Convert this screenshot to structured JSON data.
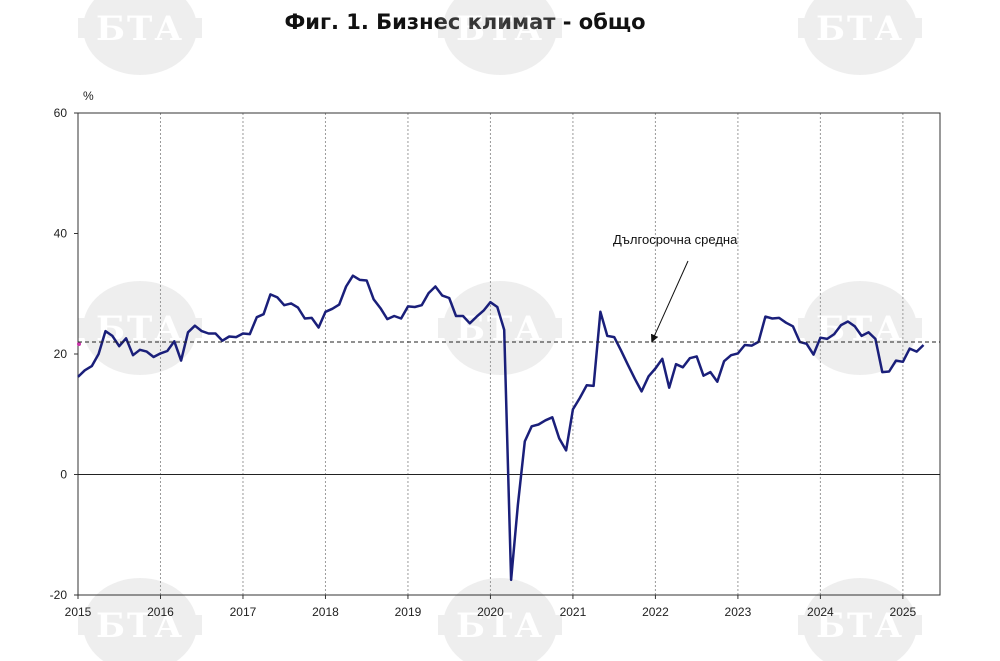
{
  "title": "Фиг. 1. Бизнес климат - общо",
  "watermark_text": "БТА",
  "chart_data": {
    "type": "line",
    "title": "Фиг. 1. Бизнес климат - общо",
    "ylabel": "%",
    "ylim": [
      -20,
      60
    ],
    "yticks": [
      "60",
      "40",
      "20",
      "0",
      "-20"
    ],
    "xlim": [
      2015,
      2025.45
    ],
    "x_tick_labels": [
      "2015",
      "2016",
      "2017",
      "2018",
      "2019",
      "2020",
      "2021",
      "2022",
      "2023",
      "2024",
      "2025"
    ],
    "grid": "vertical dotted lines at years",
    "line_color": "#1a1f7a",
    "reference_line": {
      "name": "Дългосрочна средна",
      "value": 22,
      "style": "dashed"
    },
    "annotation": "Дългосрочна средна",
    "series": [
      {
        "values": [
          [
            2015.0,
            16.2
          ],
          [
            2015.083,
            17.3
          ],
          [
            2015.167,
            18.0
          ],
          [
            2015.25,
            20.0
          ],
          [
            2015.333,
            23.8
          ],
          [
            2015.417,
            23.0
          ],
          [
            2015.5,
            21.3
          ],
          [
            2015.583,
            22.6
          ],
          [
            2015.667,
            19.8
          ],
          [
            2015.75,
            20.7
          ],
          [
            2015.833,
            20.4
          ],
          [
            2015.917,
            19.5
          ],
          [
            2016.0,
            20.1
          ],
          [
            2016.083,
            20.5
          ],
          [
            2016.167,
            22.1
          ],
          [
            2016.25,
            18.9
          ],
          [
            2016.333,
            23.6
          ],
          [
            2016.417,
            24.7
          ],
          [
            2016.5,
            23.8
          ],
          [
            2016.583,
            23.4
          ],
          [
            2016.667,
            23.4
          ],
          [
            2016.75,
            22.2
          ],
          [
            2016.833,
            22.9
          ],
          [
            2016.917,
            22.8
          ],
          [
            2017.0,
            23.4
          ],
          [
            2017.083,
            23.3
          ],
          [
            2017.167,
            26.1
          ],
          [
            2017.25,
            26.6
          ],
          [
            2017.333,
            29.9
          ],
          [
            2017.417,
            29.4
          ],
          [
            2017.5,
            28.1
          ],
          [
            2017.583,
            28.4
          ],
          [
            2017.667,
            27.7
          ],
          [
            2017.75,
            25.9
          ],
          [
            2017.833,
            26.0
          ],
          [
            2017.917,
            24.4
          ],
          [
            2018.0,
            27.0
          ],
          [
            2018.083,
            27.5
          ],
          [
            2018.167,
            28.2
          ],
          [
            2018.25,
            31.2
          ],
          [
            2018.333,
            33.0
          ],
          [
            2018.417,
            32.3
          ],
          [
            2018.5,
            32.2
          ],
          [
            2018.583,
            29.1
          ],
          [
            2018.667,
            27.6
          ],
          [
            2018.75,
            25.8
          ],
          [
            2018.833,
            26.3
          ],
          [
            2018.917,
            25.9
          ],
          [
            2019.0,
            27.9
          ],
          [
            2019.083,
            27.8
          ],
          [
            2019.167,
            28.1
          ],
          [
            2019.25,
            30.1
          ],
          [
            2019.333,
            31.2
          ],
          [
            2019.417,
            29.7
          ],
          [
            2019.5,
            29.3
          ],
          [
            2019.583,
            26.3
          ],
          [
            2019.667,
            26.3
          ],
          [
            2019.75,
            25.1
          ],
          [
            2019.833,
            26.2
          ],
          [
            2019.917,
            27.2
          ],
          [
            2020.0,
            28.6
          ],
          [
            2020.083,
            27.8
          ],
          [
            2020.167,
            24.0
          ],
          [
            2020.25,
            -17.5
          ],
          [
            2020.333,
            -5.0
          ],
          [
            2020.417,
            5.5
          ],
          [
            2020.5,
            8.0
          ],
          [
            2020.583,
            8.3
          ],
          [
            2020.667,
            9.0
          ],
          [
            2020.75,
            9.5
          ],
          [
            2020.833,
            6.0
          ],
          [
            2020.917,
            4.0
          ],
          [
            2021.0,
            10.8
          ],
          [
            2021.083,
            12.7
          ],
          [
            2021.167,
            14.8
          ],
          [
            2021.25,
            14.7
          ],
          [
            2021.333,
            27.0
          ],
          [
            2021.417,
            23.0
          ],
          [
            2021.5,
            22.8
          ],
          [
            2021.583,
            20.6
          ],
          [
            2021.667,
            18.2
          ],
          [
            2021.75,
            15.9
          ],
          [
            2021.833,
            13.8
          ],
          [
            2021.917,
            16.3
          ],
          [
            2022.0,
            17.6
          ],
          [
            2022.083,
            19.2
          ],
          [
            2022.167,
            14.4
          ],
          [
            2022.25,
            18.3
          ],
          [
            2022.333,
            17.8
          ],
          [
            2022.417,
            19.3
          ],
          [
            2022.5,
            19.6
          ],
          [
            2022.583,
            16.4
          ],
          [
            2022.667,
            17.0
          ],
          [
            2022.75,
            15.4
          ],
          [
            2022.833,
            18.8
          ],
          [
            2022.917,
            19.8
          ],
          [
            2023.0,
            20.1
          ],
          [
            2023.083,
            21.5
          ],
          [
            2023.167,
            21.4
          ],
          [
            2023.25,
            22.0
          ],
          [
            2023.333,
            26.2
          ],
          [
            2023.417,
            25.9
          ],
          [
            2023.5,
            26.0
          ],
          [
            2023.583,
            25.2
          ],
          [
            2023.667,
            24.6
          ],
          [
            2023.75,
            22.0
          ],
          [
            2023.833,
            21.7
          ],
          [
            2023.917,
            19.9
          ],
          [
            2024.0,
            22.7
          ],
          [
            2024.083,
            22.5
          ],
          [
            2024.167,
            23.3
          ],
          [
            2024.25,
            24.8
          ],
          [
            2024.333,
            25.4
          ],
          [
            2024.417,
            24.6
          ],
          [
            2024.5,
            23.0
          ],
          [
            2024.583,
            23.6
          ],
          [
            2024.667,
            22.5
          ],
          [
            2024.75,
            17.0
          ],
          [
            2024.833,
            17.1
          ],
          [
            2024.917,
            18.9
          ],
          [
            2025.0,
            18.7
          ],
          [
            2025.083,
            20.9
          ],
          [
            2025.167,
            20.4
          ],
          [
            2025.25,
            21.5
          ]
        ]
      }
    ]
  }
}
